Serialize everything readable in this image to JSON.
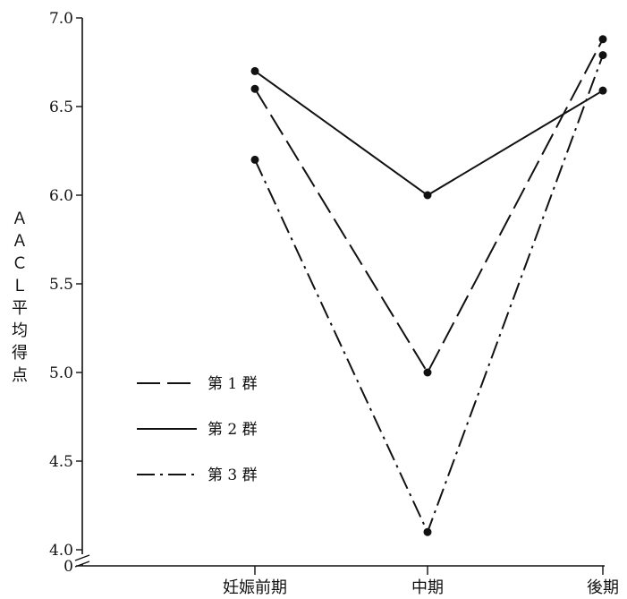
{
  "chart_data": {
    "type": "line",
    "categories": [
      "妊娠前期",
      "中期",
      "後期"
    ],
    "series": [
      {
        "name": "第 1 群",
        "style": "dashed",
        "values": [
          6.6,
          5.0,
          6.88
        ]
      },
      {
        "name": "第 2 群",
        "style": "solid",
        "values": [
          6.7,
          6.0,
          6.59
        ]
      },
      {
        "name": "第 3 群",
        "style": "dashdot",
        "values": [
          6.2,
          4.1,
          6.79
        ]
      }
    ],
    "title": "",
    "xlabel": "",
    "ylabel": "ＡＡＣＬ平均得点",
    "ylim": [
      4.0,
      7.0
    ],
    "yticks": [
      "0",
      "4.0",
      "4.5",
      "5.0",
      "5.5",
      "6.0",
      "6.5",
      "7.0"
    ],
    "axis_break": true,
    "grid": false,
    "legend": "inside-left",
    "colors": {
      "ink": "#111111"
    }
  }
}
